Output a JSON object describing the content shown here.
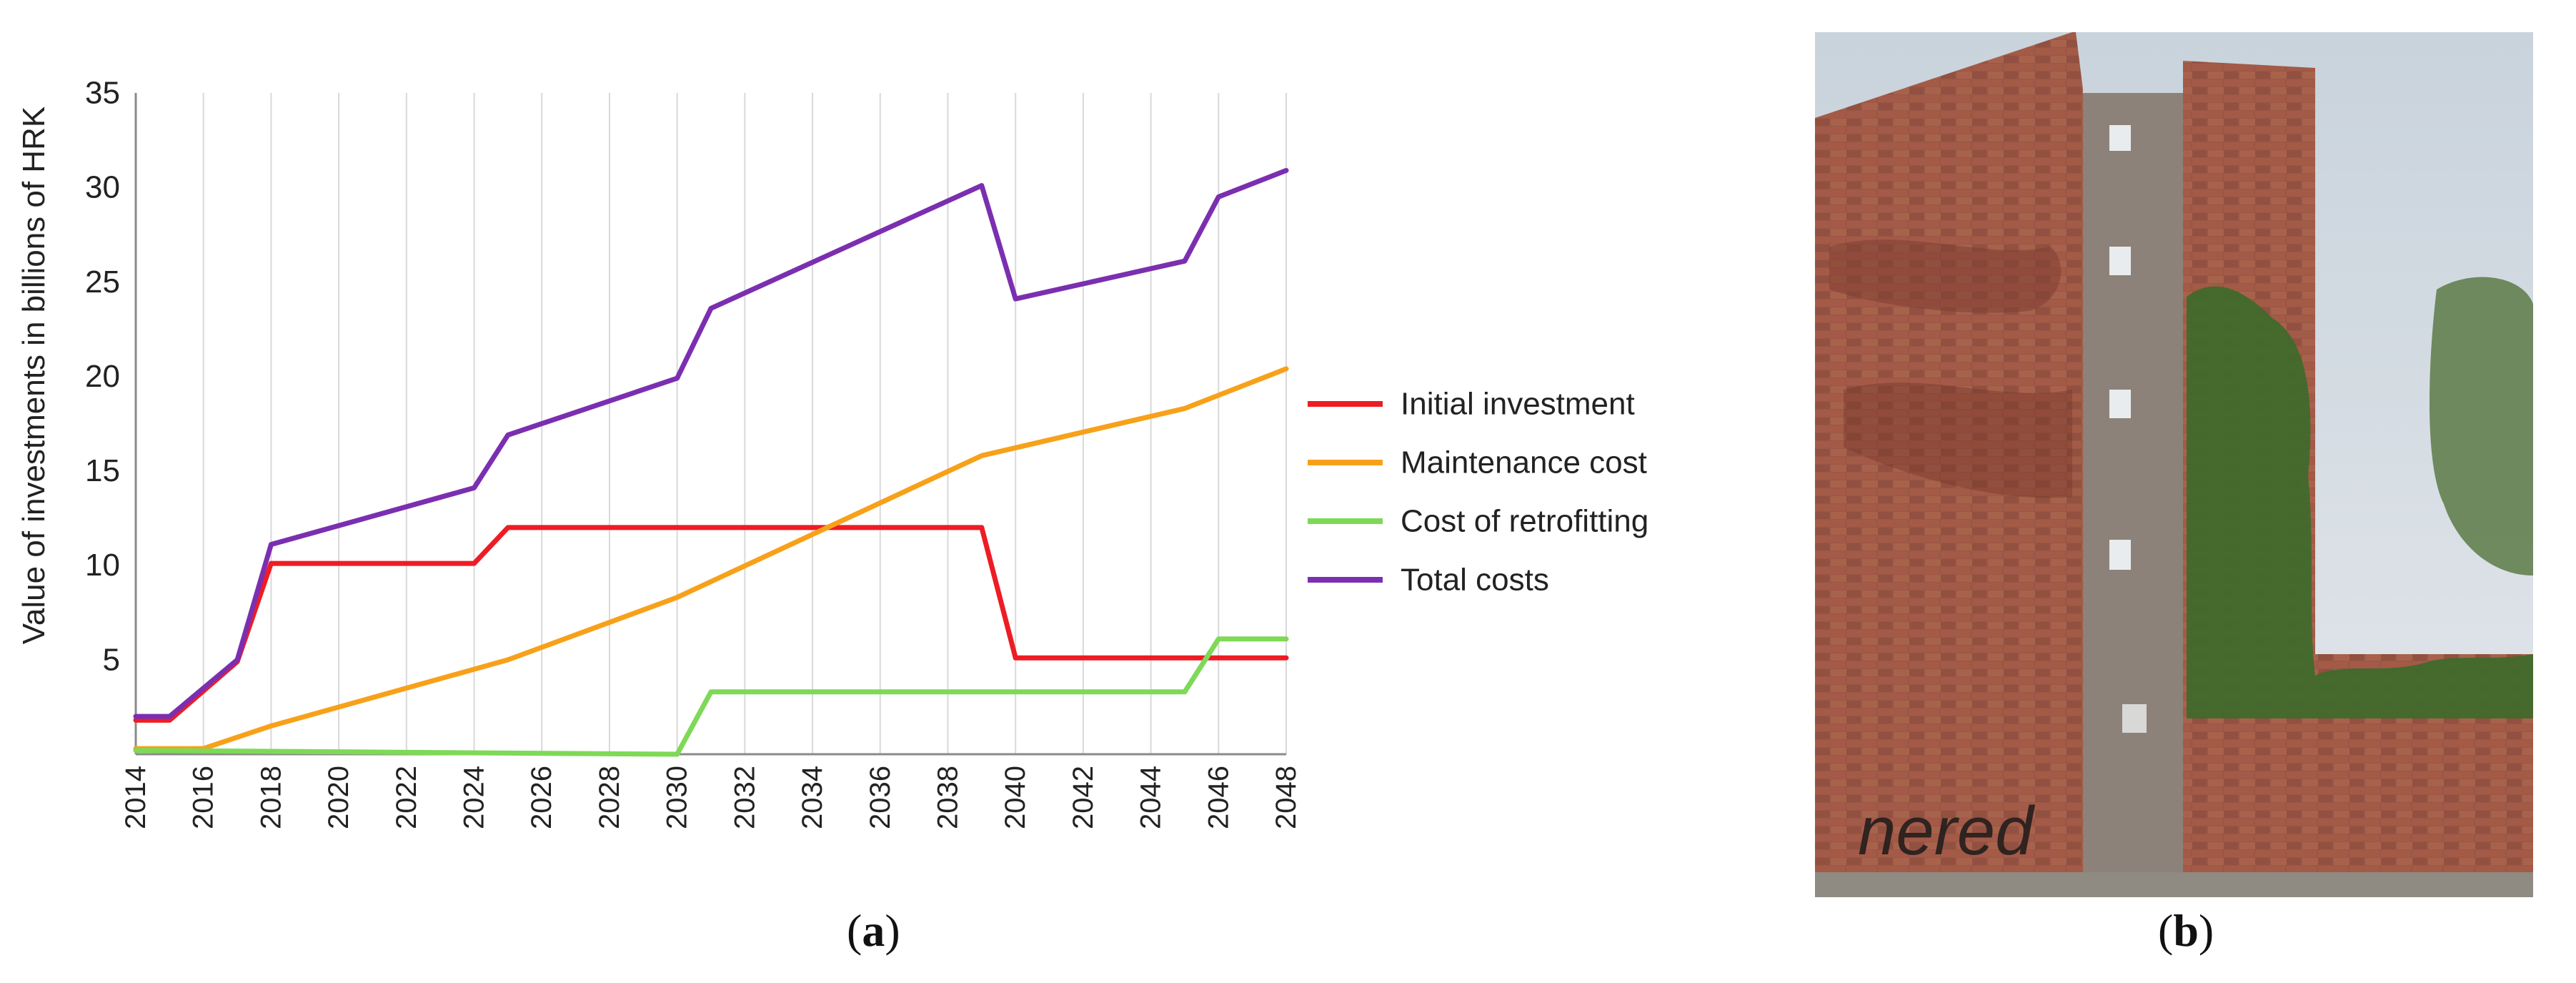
{
  "chart_data": {
    "type": "line",
    "title": "",
    "xlabel": "",
    "ylabel": "Value of investments in billions of HRK",
    "x": [
      2014,
      2015,
      2016,
      2017,
      2018,
      2024,
      2025,
      2030,
      2031,
      2039,
      2040,
      2045,
      2046,
      2048
    ],
    "xticks": [
      "2014",
      "2016",
      "2018",
      "2020",
      "2022",
      "2024",
      "2026",
      "2028",
      "2030",
      "2032",
      "2034",
      "2036",
      "2038",
      "2040",
      "2042",
      "2044",
      "2046",
      "2048"
    ],
    "yticks": [
      "5",
      "10",
      "15",
      "20",
      "25",
      "30",
      "35"
    ],
    "xlim": [
      2014,
      2048
    ],
    "ylim": [
      0,
      35
    ],
    "grid": "vertical",
    "legend_position": "right",
    "series": [
      {
        "name": "Initial investment",
        "color": "#ee1c24",
        "points": [
          [
            2014,
            1.8
          ],
          [
            2015,
            1.8
          ],
          [
            2017,
            4.9
          ],
          [
            2018,
            10.1
          ],
          [
            2024,
            10.1
          ],
          [
            2025,
            12.0
          ],
          [
            2039,
            12.0
          ],
          [
            2040,
            5.1
          ],
          [
            2048,
            5.1
          ]
        ]
      },
      {
        "name": "Maintenance cost",
        "color": "#f7a11a",
        "points": [
          [
            2014,
            0.3
          ],
          [
            2016,
            0.3
          ],
          [
            2018,
            1.5
          ],
          [
            2025,
            5.0
          ],
          [
            2030,
            8.3
          ],
          [
            2039,
            15.8
          ],
          [
            2045,
            18.3
          ],
          [
            2048,
            20.4
          ]
        ]
      },
      {
        "name": "Cost of retrofitting",
        "color": "#7ed957",
        "points": [
          [
            2014,
            0.2
          ],
          [
            2030,
            0.0
          ],
          [
            2031,
            3.3
          ],
          [
            2045,
            3.3
          ],
          [
            2046,
            6.1
          ],
          [
            2048,
            6.1
          ]
        ]
      },
      {
        "name": "Total costs",
        "color": "#7b2fb0",
        "points": [
          [
            2014,
            2.0
          ],
          [
            2015,
            2.0
          ],
          [
            2017,
            5.0
          ],
          [
            2018,
            11.1
          ],
          [
            2024,
            14.1
          ],
          [
            2025,
            16.9
          ],
          [
            2030,
            19.9
          ],
          [
            2031,
            23.6
          ],
          [
            2039,
            30.1
          ],
          [
            2040,
            24.1
          ],
          [
            2045,
            26.1
          ],
          [
            2046,
            29.5
          ],
          [
            2048,
            30.9
          ]
        ]
      }
    ]
  },
  "captions": {
    "a": "a",
    "b": "b"
  },
  "photo": {
    "graffiti_text": "nered",
    "sky_color": "#dbe3ea",
    "brick_color": "#9c5444",
    "ivy_color": "#3f6b2a",
    "stucco_color": "#8a8078"
  }
}
